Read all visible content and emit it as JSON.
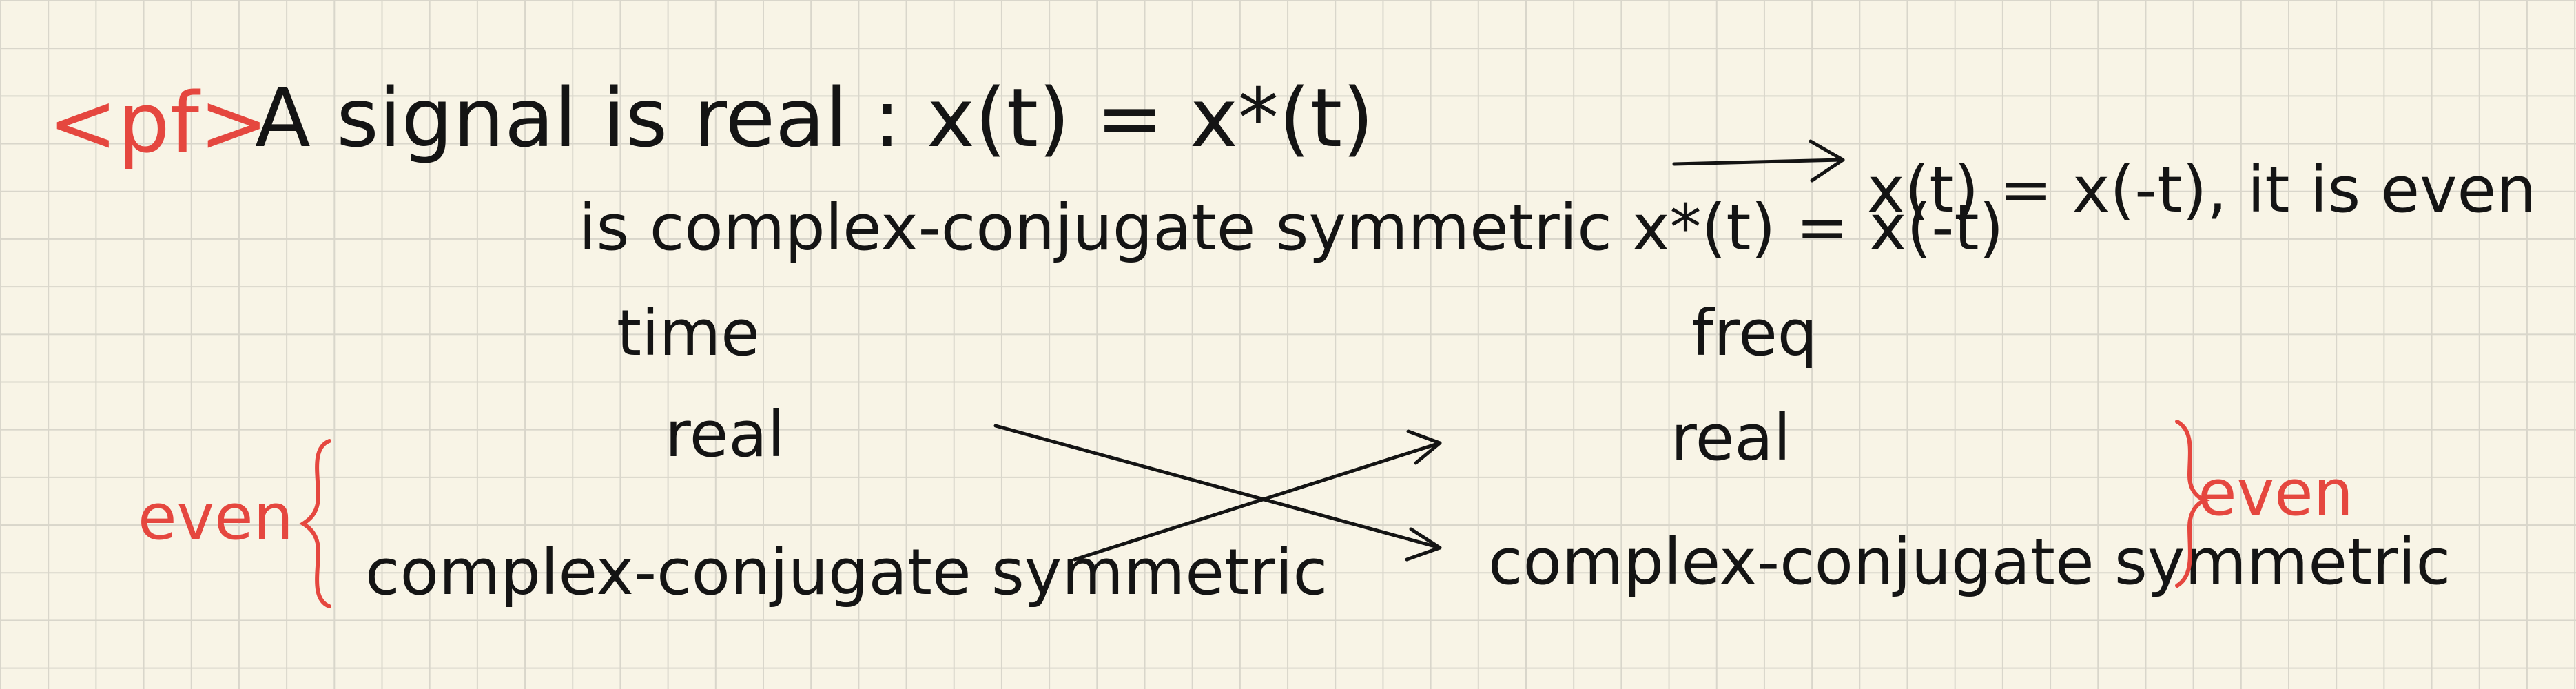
{
  "note": {
    "proof_tag": "<pf>",
    "line1": "A signal is real :  x(t) = x*(t)",
    "line2": "is complex-conjugate symmetric  x*(t) = x(-t)",
    "implication": "x(t) = x(-t), it is even",
    "time_label": "time",
    "freq_label": "freq",
    "time_real": "real",
    "freq_real": "real",
    "time_ccs": "complex-conjugate symmetric",
    "freq_ccs": "complex-conjugate symmetric",
    "left_even": "even",
    "right_even": "even"
  },
  "colors": {
    "ink": "#141414",
    "accent": "#e5473f",
    "paper": "#f8f4e6",
    "grid": "#d9d6cb"
  }
}
